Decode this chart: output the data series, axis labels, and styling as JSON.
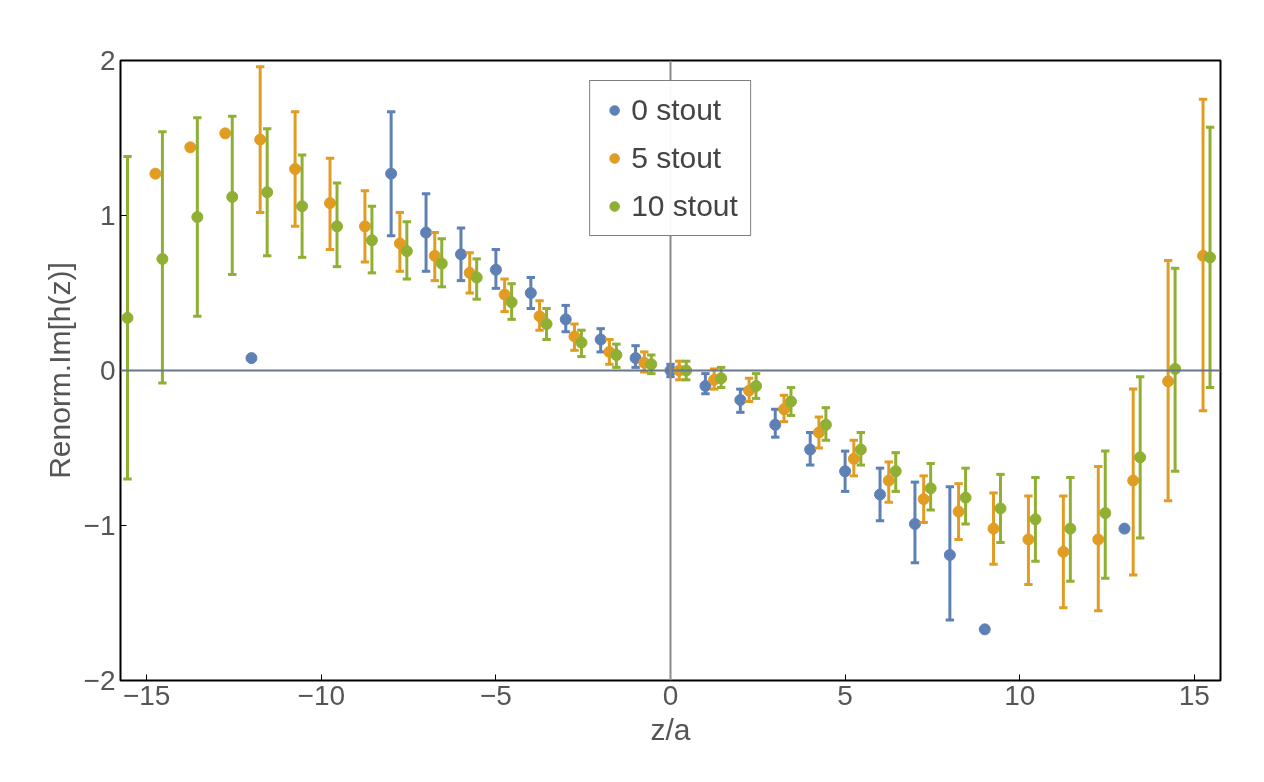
{
  "chart_data": {
    "type": "scatter",
    "xlabel": "z/a",
    "ylabel": "Renorm.Im[h(z)]",
    "xlim": [
      -15.75,
      15.75
    ],
    "ylim": [
      -2,
      2
    ],
    "xticks": [
      {
        "value": -15,
        "label": "−15"
      },
      {
        "value": -10,
        "label": "−10"
      },
      {
        "value": -5,
        "label": "−5"
      },
      0,
      5,
      10,
      15
    ],
    "yticks": [
      {
        "value": -2,
        "label": "−2"
      },
      {
        "value": -1,
        "label": "−1"
      },
      0,
      1,
      2
    ],
    "ref_lines": [
      {
        "axis": "y",
        "value": 0,
        "color": "#68768a"
      },
      {
        "axis": "x",
        "value": 0,
        "color": "#8a8a8a"
      }
    ],
    "legend": "top",
    "marker": "circle",
    "series": [
      {
        "name": "0 stout",
        "color": "#5e81b5",
        "x": [
          -12,
          -8,
          -7,
          -6,
          -5,
          -4,
          -3,
          -2,
          -1,
          0,
          1,
          2,
          3,
          4,
          5,
          6,
          7,
          8,
          9,
          13
        ],
        "values": [
          0.08,
          1.27,
          0.89,
          0.75,
          0.65,
          0.5,
          0.33,
          0.2,
          0.08,
          0.0,
          -0.1,
          -0.19,
          -0.35,
          -0.51,
          -0.65,
          -0.8,
          -0.99,
          -1.19,
          -1.67,
          -1.02
        ],
        "errors": [
          null,
          [
            0.87,
            1.67
          ],
          [
            0.64,
            1.14
          ],
          [
            0.58,
            0.92
          ],
          [
            0.53,
            0.78
          ],
          [
            0.4,
            0.6
          ],
          [
            0.25,
            0.42
          ],
          [
            0.12,
            0.27
          ],
          [
            0.02,
            0.16
          ],
          [
            -0.04,
            0.04
          ],
          [
            -0.15,
            -0.02
          ],
          [
            -0.27,
            -0.12
          ],
          [
            -0.43,
            -0.25
          ],
          [
            -0.61,
            -0.4
          ],
          [
            -0.78,
            -0.52
          ],
          [
            -0.97,
            -0.63
          ],
          [
            -1.24,
            -0.72
          ],
          [
            -1.61,
            -0.75
          ],
          null,
          null
        ]
      },
      {
        "name": "5 stout",
        "color": "#e19c24",
        "x": [
          -14.75,
          -13.75,
          -12.75,
          -11.75,
          -10.75,
          -9.75,
          -8.75,
          -7.75,
          -6.75,
          -5.75,
          -4.75,
          -3.75,
          -2.75,
          -1.75,
          -0.75,
          0.25,
          1.25,
          2.25,
          3.25,
          4.25,
          5.25,
          6.25,
          7.25,
          8.25,
          9.25,
          10.25,
          11.25,
          12.25,
          13.25,
          14.25,
          15.25
        ],
        "values": [
          1.27,
          1.44,
          1.53,
          1.49,
          1.3,
          1.08,
          0.93,
          0.82,
          0.74,
          0.63,
          0.49,
          0.35,
          0.22,
          0.12,
          0.05,
          0.0,
          -0.06,
          -0.13,
          -0.25,
          -0.4,
          -0.57,
          -0.71,
          -0.83,
          -0.91,
          -1.02,
          -1.09,
          -1.17,
          -1.09,
          -0.71,
          -0.07,
          0.74
        ],
        "errors": [
          null,
          null,
          null,
          [
            1.02,
            1.96
          ],
          [
            0.93,
            1.67
          ],
          [
            0.78,
            1.37
          ],
          [
            0.7,
            1.16
          ],
          [
            0.64,
            1.02
          ],
          [
            0.58,
            0.89
          ],
          [
            0.5,
            0.76
          ],
          [
            0.38,
            0.59
          ],
          [
            0.26,
            0.45
          ],
          [
            0.13,
            0.3
          ],
          [
            0.04,
            0.2
          ],
          [
            -0.01,
            0.12
          ],
          [
            -0.06,
            0.06
          ],
          [
            -0.12,
            0.01
          ],
          [
            -0.2,
            -0.05
          ],
          [
            -0.33,
            -0.16
          ],
          [
            -0.5,
            -0.3
          ],
          [
            -0.68,
            -0.45
          ],
          [
            -0.85,
            -0.59
          ],
          [
            -0.98,
            -0.68
          ],
          [
            -1.09,
            -0.73
          ],
          [
            -1.25,
            -0.79
          ],
          [
            -1.38,
            -0.81
          ],
          [
            -1.53,
            -0.81
          ],
          [
            -1.55,
            -0.62
          ],
          [
            -1.32,
            -0.12
          ],
          [
            -0.84,
            0.71
          ],
          [
            -0.26,
            1.75
          ]
        ]
      },
      {
        "name": "10 stout",
        "color": "#8fb032",
        "x": [
          -15.55,
          -14.55,
          -13.55,
          -12.55,
          -11.55,
          -10.55,
          -9.55,
          -8.55,
          -7.55,
          -6.55,
          -5.55,
          -4.55,
          -3.55,
          -2.55,
          -1.55,
          -0.55,
          0.45,
          1.45,
          2.45,
          3.45,
          4.45,
          5.45,
          6.45,
          7.45,
          8.45,
          9.45,
          10.45,
          11.45,
          12.45,
          13.45,
          14.45,
          15.45
        ],
        "values": [
          0.34,
          0.72,
          0.99,
          1.12,
          1.15,
          1.06,
          0.93,
          0.84,
          0.77,
          0.69,
          0.6,
          0.44,
          0.3,
          0.18,
          0.1,
          0.04,
          0.0,
          -0.05,
          -0.1,
          -0.2,
          -0.35,
          -0.51,
          -0.65,
          -0.76,
          -0.82,
          -0.89,
          -0.96,
          -1.02,
          -0.92,
          -0.56,
          0.01,
          0.73
        ],
        "errors": [
          [
            -0.7,
            1.38
          ],
          [
            -0.08,
            1.54
          ],
          [
            0.35,
            1.63
          ],
          [
            0.62,
            1.64
          ],
          [
            0.74,
            1.56
          ],
          [
            0.73,
            1.39
          ],
          [
            0.67,
            1.21
          ],
          [
            0.63,
            1.06
          ],
          [
            0.59,
            0.96
          ],
          [
            0.54,
            0.85
          ],
          [
            0.46,
            0.72
          ],
          [
            0.33,
            0.56
          ],
          [
            0.2,
            0.4
          ],
          [
            0.09,
            0.26
          ],
          [
            0.02,
            0.17
          ],
          [
            -0.02,
            0.1
          ],
          [
            -0.06,
            0.06
          ],
          [
            -0.11,
            0.02
          ],
          [
            -0.18,
            -0.02
          ],
          [
            -0.29,
            -0.11
          ],
          [
            -0.45,
            -0.24
          ],
          [
            -0.61,
            -0.4
          ],
          [
            -0.78,
            -0.53
          ],
          [
            -0.9,
            -0.6
          ],
          [
            -0.99,
            -0.63
          ],
          [
            -1.11,
            -0.67
          ],
          [
            -1.23,
            -0.69
          ],
          [
            -1.36,
            -0.69
          ],
          [
            -1.34,
            -0.52
          ],
          [
            -1.08,
            -0.04
          ],
          [
            -0.65,
            0.66
          ],
          [
            -0.11,
            1.57
          ]
        ]
      }
    ]
  }
}
